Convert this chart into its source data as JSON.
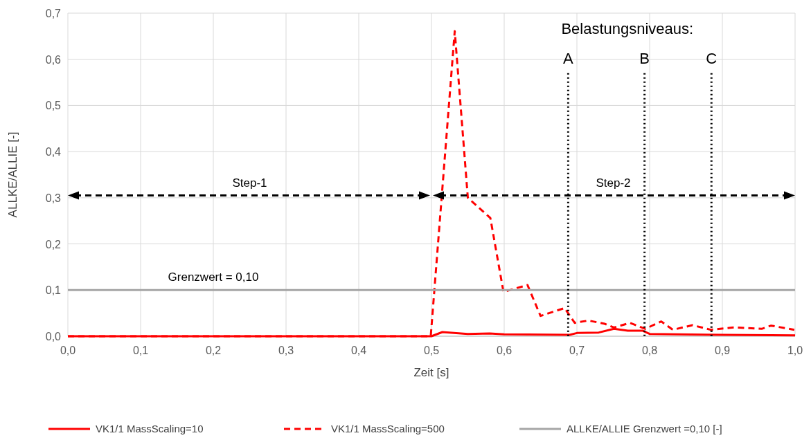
{
  "chart_data": {
    "type": "line",
    "xlabel": "Zeit [s]",
    "ylabel": "ALLKE/ALLIE [-]",
    "xlim": [
      0,
      1
    ],
    "ylim": [
      0,
      0.7
    ],
    "xticks": [
      {
        "value": 0,
        "label": "0,0"
      },
      {
        "value": 0.1,
        "label": "0,1"
      },
      {
        "value": 0.2,
        "label": "0,2"
      },
      {
        "value": 0.3,
        "label": "0,3"
      },
      {
        "value": 0.4,
        "label": "0,4"
      },
      {
        "value": 0.5,
        "label": "0,5"
      },
      {
        "value": 0.6,
        "label": "0,6"
      },
      {
        "value": 0.7,
        "label": "0,7"
      },
      {
        "value": 0.8,
        "label": "0,8"
      },
      {
        "value": 0.9,
        "label": "0,9"
      },
      {
        "value": 1,
        "label": "1,0"
      }
    ],
    "yticks": [
      {
        "value": 0,
        "label": "0,0"
      },
      {
        "value": 0.1,
        "label": "0,1"
      },
      {
        "value": 0.2,
        "label": "0,2"
      },
      {
        "value": 0.3,
        "label": "0,3"
      },
      {
        "value": 0.4,
        "label": "0,4"
      },
      {
        "value": 0.5,
        "label": "0,5"
      },
      {
        "value": 0.6,
        "label": "0,6"
      },
      {
        "value": 0.7,
        "label": "0,7"
      }
    ],
    "grid": true,
    "legend": "bottom",
    "series": [
      {
        "name": "VK1/1 MassScaling=10",
        "color": "#ff0000",
        "line_style": "solid",
        "x": [
          0,
          0.5,
          0.515,
          0.55,
          0.58,
          0.6,
          0.69,
          0.7,
          0.73,
          0.751,
          0.77,
          0.79,
          0.8,
          0.9,
          1
        ],
        "values": [
          0,
          0,
          0.009,
          0.005,
          0.006,
          0.004,
          0.003,
          0.007,
          0.008,
          0.016,
          0.012,
          0.012,
          0.005,
          0.003,
          0.002
        ]
      },
      {
        "name": "VK1/1 MassScaling=500",
        "color": "#ff0000",
        "line_style": "dashed",
        "x": [
          0,
          0.499,
          0.532,
          0.55,
          0.581,
          0.599,
          0.632,
          0.65,
          0.683,
          0.697,
          0.716,
          0.738,
          0.751,
          0.773,
          0.794,
          0.816,
          0.832,
          0.859,
          0.884,
          0.916,
          0.954,
          0.967,
          0.999
        ],
        "values": [
          0,
          0,
          0.661,
          0.3,
          0.256,
          0.096,
          0.111,
          0.044,
          0.061,
          0.029,
          0.034,
          0.027,
          0.019,
          0.029,
          0.016,
          0.032,
          0.014,
          0.024,
          0.014,
          0.019,
          0.016,
          0.023,
          0.014
        ]
      },
      {
        "name": "ALLKE/ALLIE Grenzwert =0,10 [-]",
        "color": "#a6a6a6",
        "line_style": "solid",
        "x": [
          0,
          1
        ],
        "values": [
          0.1,
          0.1
        ]
      }
    ],
    "ref_lines": [
      {
        "axis": "x",
        "value": 0.688,
        "label": "A",
        "color": "#000000",
        "line_style": "dotted"
      },
      {
        "axis": "x",
        "value": 0.793,
        "label": "B",
        "color": "#000000",
        "line_style": "dotted"
      },
      {
        "axis": "x",
        "value": 0.885,
        "label": "C",
        "color": "#000000",
        "line_style": "dotted"
      }
    ],
    "annotations": [
      "Belastungsniveaus:",
      "Step-1",
      "Step-2",
      {
        "text": "Grenzwert = 0,10",
        "x": 0.2,
        "y": 0.1
      }
    ]
  }
}
